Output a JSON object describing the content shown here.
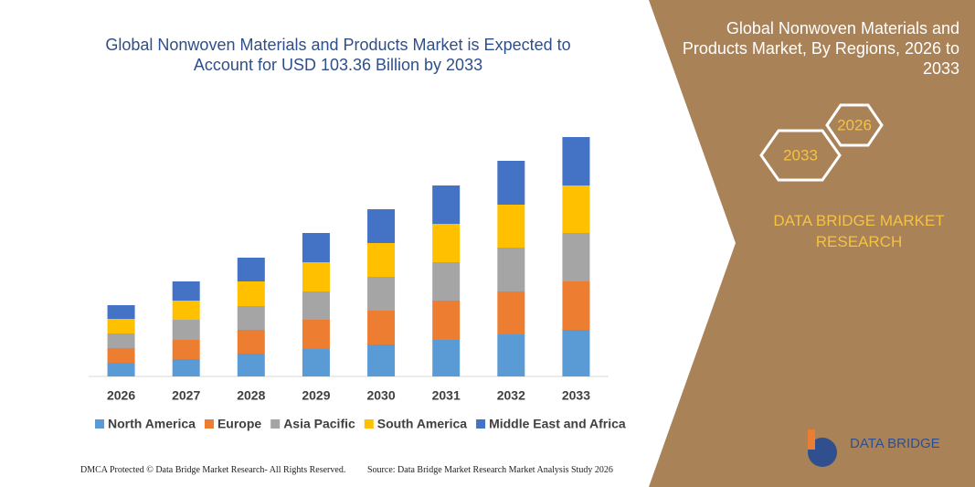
{
  "chart_data": {
    "type": "stacked-bar",
    "title": "Global Nonwoven Materials and Products Market is Expected to Account for USD 103.36 Billion by 2033",
    "categories": [
      "2026",
      "2027",
      "2028",
      "2029",
      "2030",
      "2031",
      "2032",
      "2033"
    ],
    "series": [
      {
        "name": "North America",
        "color": "#5b9bd5",
        "values": [
          15,
          19,
          25,
          30,
          35,
          40,
          46,
          51
        ]
      },
      {
        "name": "Europe",
        "color": "#ed7d31",
        "values": [
          16,
          21,
          26,
          32,
          37,
          43,
          47,
          53
        ]
      },
      {
        "name": "Asia Pacific",
        "color": "#a5a5a5",
        "values": [
          16,
          22,
          26,
          31,
          37,
          42,
          48,
          53
        ]
      },
      {
        "name": "South America",
        "color": "#ffc000",
        "values": [
          16,
          21,
          27,
          32,
          37,
          42,
          47,
          52
        ]
      },
      {
        "name": "Middle East and Africa",
        "color": "#4472c4",
        "values": [
          15,
          21,
          26,
          32,
          37,
          42,
          48,
          53
        ]
      }
    ],
    "ylim": [
      0,
      262
    ]
  },
  "side_title": "Global Nonwoven Materials and Products Market, By Regions, 2026 to 2033",
  "badges": [
    "2026",
    "2033"
  ],
  "brand": "DATA BRIDGE MARKET RESEARCH",
  "logo": "DATA BRIDGE",
  "footer": {
    "left": "DMCA Protected © Data Bridge Market Research- All Rights Reserved.",
    "right": "Source: Data Bridge Market Research Market Analysis Study 2026"
  }
}
